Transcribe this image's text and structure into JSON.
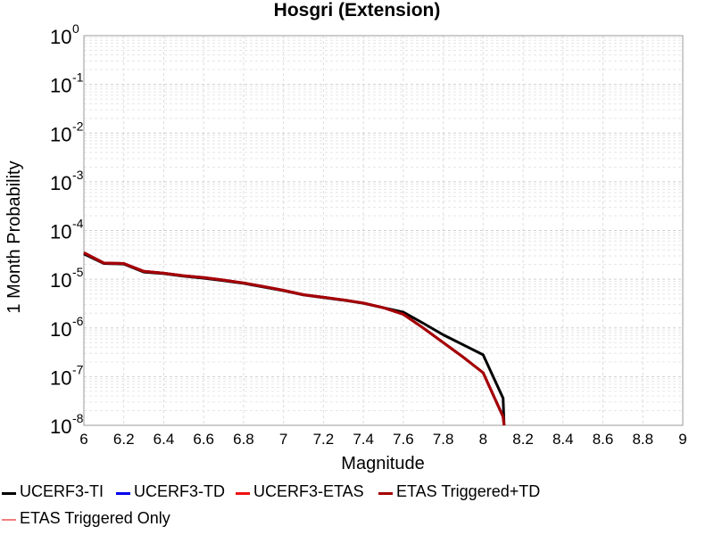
{
  "chart_data": {
    "type": "line",
    "title": "Hosgri (Extension)",
    "xlabel": "Magnitude",
    "ylabel": "1 Month Probability",
    "xlim": [
      6,
      9
    ],
    "ylim": [
      1e-08,
      1
    ],
    "yscale": "log",
    "grid": true,
    "legend_position": "bottom",
    "x_ticks": [
      "6",
      "6.2",
      "6.4",
      "6.6",
      "6.8",
      "7",
      "7.2",
      "7.4",
      "7.6",
      "7.8",
      "8",
      "8.2",
      "8.4",
      "8.6",
      "8.8",
      "9"
    ],
    "y_ticks": [
      {
        "base": "10",
        "exp": "0"
      },
      {
        "base": "10",
        "exp": "-1"
      },
      {
        "base": "10",
        "exp": "-2"
      },
      {
        "base": "10",
        "exp": "-3"
      },
      {
        "base": "10",
        "exp": "-4"
      },
      {
        "base": "10",
        "exp": "-5"
      },
      {
        "base": "10",
        "exp": "-6"
      },
      {
        "base": "10",
        "exp": "-7"
      },
      {
        "base": "10",
        "exp": "-8"
      }
    ],
    "series": [
      {
        "name": "UCERF3-TI",
        "color": "#000000",
        "width": 3,
        "x": [
          6.0,
          6.1,
          6.2,
          6.3,
          6.4,
          6.5,
          6.6,
          6.7,
          6.8,
          6.9,
          7.0,
          7.1,
          7.2,
          7.3,
          7.4,
          7.5,
          7.6,
          7.7,
          7.8,
          7.9,
          8.0,
          8.1,
          8.105
        ],
        "y": [
          3.3e-05,
          2.1e-05,
          2.05e-05,
          1.4e-05,
          1.3e-05,
          1.15e-05,
          1.05e-05,
          9.3e-06,
          8.2e-06,
          6.9e-06,
          5.8e-06,
          4.75e-06,
          4.2e-06,
          3.7e-06,
          3.2e-06,
          2.6e-06,
          2.1e-06,
          1.25e-06,
          7.2e-07,
          4.5e-07,
          2.8e-07,
          3.6e-08,
          1e-08
        ]
      },
      {
        "name": "UCERF3-TD",
        "color": "#0000ee",
        "width": 3,
        "x": [
          6.0,
          6.1,
          6.2,
          6.3,
          6.4,
          6.5,
          6.6,
          6.7,
          6.8,
          6.9,
          7.0,
          7.1,
          7.2,
          7.3,
          7.4,
          7.5,
          7.6,
          7.7,
          7.8,
          7.9,
          8.0,
          8.1,
          8.105
        ],
        "y": [
          3.5e-05,
          2.15e-05,
          2.1e-05,
          1.45e-05,
          1.33e-05,
          1.18e-05,
          1.08e-05,
          9.6e-06,
          8.4e-06,
          7.1e-06,
          5.9e-06,
          4.8e-06,
          4.25e-06,
          3.75e-06,
          3.25e-06,
          2.6e-06,
          1.9e-06,
          1e-06,
          5e-07,
          2.5e-07,
          1.2e-07,
          1.5e-08,
          1e-08
        ]
      },
      {
        "name": "UCERF3-ETAS",
        "color": "#ee1111",
        "width": 3,
        "x": [
          6.0,
          6.1,
          6.2,
          6.3,
          6.4,
          6.5,
          6.6,
          6.7,
          6.8,
          6.9,
          7.0,
          7.1,
          7.2,
          7.3,
          7.4,
          7.5,
          7.6,
          7.7,
          7.8,
          7.9,
          8.0,
          8.1,
          8.105
        ],
        "y": [
          3.5e-05,
          2.15e-05,
          2.1e-05,
          1.45e-05,
          1.33e-05,
          1.18e-05,
          1.08e-05,
          9.6e-06,
          8.4e-06,
          7.1e-06,
          5.9e-06,
          4.8e-06,
          4.25e-06,
          3.75e-06,
          3.25e-06,
          2.6e-06,
          1.9e-06,
          1e-06,
          5e-07,
          2.5e-07,
          1.2e-07,
          1.5e-08,
          1e-08
        ]
      },
      {
        "name": "ETAS Triggered+TD",
        "color": "#a50000",
        "width": 3,
        "x": [
          6.0,
          6.1,
          6.2,
          6.3,
          6.4,
          6.5,
          6.6,
          6.7,
          6.8,
          6.9,
          7.0,
          7.1,
          7.2,
          7.3,
          7.4,
          7.5,
          7.6,
          7.7,
          7.8,
          7.9,
          8.0,
          8.1,
          8.105
        ],
        "y": [
          3.5e-05,
          2.15e-05,
          2.1e-05,
          1.45e-05,
          1.33e-05,
          1.18e-05,
          1.08e-05,
          9.6e-06,
          8.4e-06,
          7.1e-06,
          5.9e-06,
          4.8e-06,
          4.25e-06,
          3.75e-06,
          3.25e-06,
          2.6e-06,
          1.9e-06,
          1e-06,
          5e-07,
          2.5e-07,
          1.2e-07,
          1.5e-08,
          1e-08
        ]
      },
      {
        "name": "ETAS Triggered Only",
        "color": "#f08080",
        "width": 1.5,
        "x": [],
        "y": []
      }
    ]
  },
  "legend": {
    "items": [
      {
        "label": "UCERF3-TI",
        "color": "#000000"
      },
      {
        "label": "UCERF3-TD",
        "color": "#0000ee"
      },
      {
        "label": "UCERF3-ETAS",
        "color": "#ee1111"
      },
      {
        "label": "ETAS Triggered+TD",
        "color": "#a50000"
      },
      {
        "label": "ETAS Triggered Only",
        "color": "#f08080"
      }
    ]
  }
}
